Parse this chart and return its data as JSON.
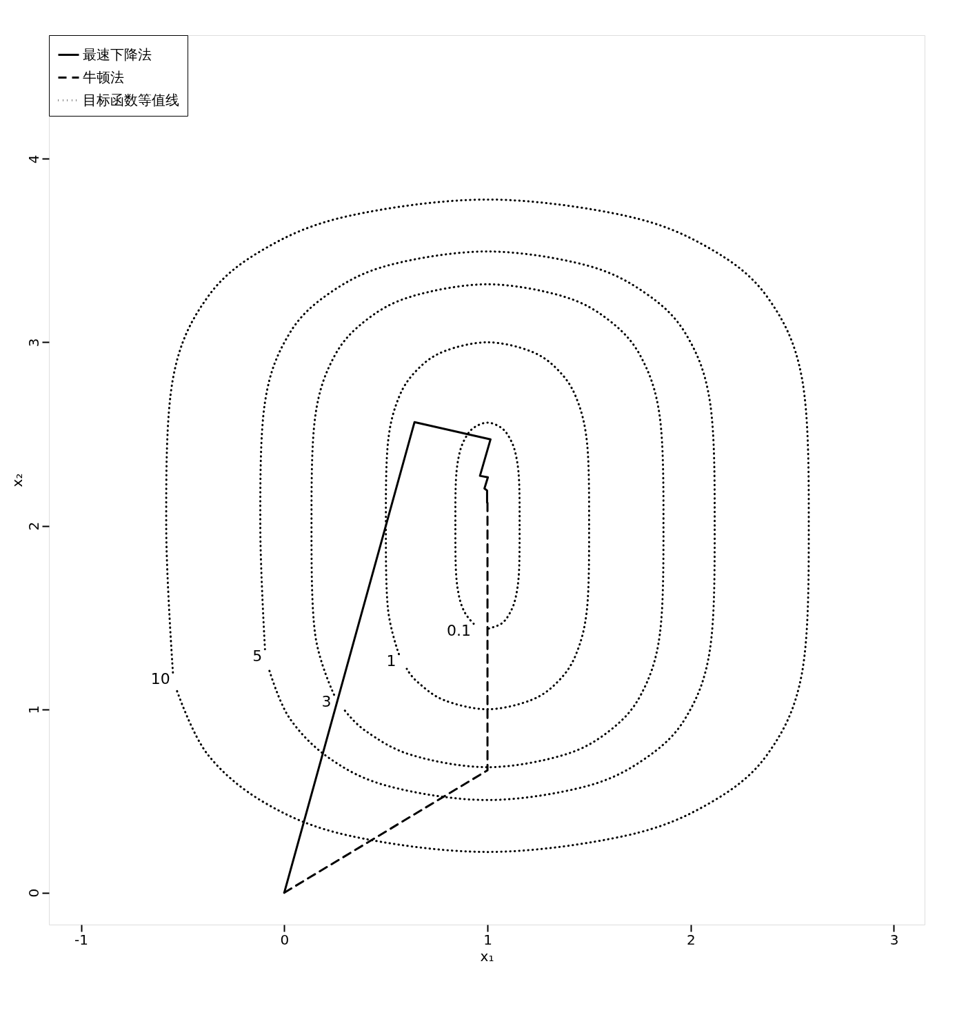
{
  "chart_data": {
    "type": "line",
    "xlabel": "x₁",
    "ylabel": "x₂",
    "xlim": [
      -1.158,
      3.151
    ],
    "ylim": [
      -0.174,
      4.674
    ],
    "xticks": [
      -1,
      0,
      1,
      2,
      3
    ],
    "yticks": [
      0,
      1,
      2,
      3,
      4
    ],
    "grid": false,
    "legend": "top left",
    "marker": "none",
    "series": [
      {
        "name": "最速下降法",
        "color": "#000000",
        "line_style": "solid",
        "x": [
          0,
          0.641,
          1.015,
          0.963,
          1.002,
          0.985,
          0.998,
          0.998
        ],
        "values": [
          0,
          2.565,
          2.471,
          2.272,
          2.264,
          2.203,
          2.192,
          2.127
        ]
      },
      {
        "name": "牛顿法",
        "color": "#000000",
        "line_style": "dashed",
        "x": [
          0,
          1,
          1
        ],
        "values": [
          0,
          0.667,
          2.13
        ]
      },
      {
        "name": "目标函数等值线",
        "color": "#000000",
        "line_style": "dotted",
        "x": [
          0.932,
          0.891,
          0.862,
          0.845,
          0.842,
          0.845,
          0.862,
          0.891,
          0.932,
          1,
          1.068,
          1.109,
          1.138,
          1.155,
          1.158,
          1.155,
          1.138,
          1.109,
          1.068,
          1
        ],
        "values": [
          1.466,
          1.522,
          1.606,
          1.747,
          2,
          2.253,
          2.394,
          2.478,
          2.534,
          2.562,
          2.534,
          2.478,
          2.394,
          2.253,
          2,
          1.747,
          1.606,
          1.522,
          1.466,
          1.438
        ]
      },
      {
        "color": "#000000",
        "line_style": "dotted",
        "x": [
          0.564,
          0.51,
          0.5,
          0.51,
          0.564,
          0.654,
          0.785,
          1,
          1.215,
          1.346,
          1.436,
          1.49,
          1.5,
          1.49,
          1.436,
          1.346,
          1.215,
          1,
          0.785,
          0.654,
          0.603
        ],
        "values": [
          1.3,
          1.55,
          2,
          2.45,
          2.7,
          2.85,
          2.95,
          3,
          2.95,
          2.85,
          2.7,
          2.45,
          2,
          1.55,
          1.3,
          1.15,
          1.05,
          1,
          1.05,
          1.15,
          1.22
        ]
      },
      {
        "color": "#000000",
        "line_style": "dotted",
        "x": [
          0.245,
          0.152,
          0.134,
          0.152,
          0.245,
          0.401,
          0.627,
          1,
          1.373,
          1.599,
          1.755,
          1.848,
          1.866,
          1.848,
          1.755,
          1.599,
          1.373,
          1,
          0.627,
          0.401,
          0.293
        ],
        "values": [
          1.079,
          1.408,
          2,
          2.592,
          2.921,
          3.119,
          3.25,
          3.316,
          3.25,
          3.119,
          2.921,
          2.592,
          2,
          1.408,
          1.079,
          0.881,
          0.75,
          0.684,
          0.75,
          0.881,
          1.0
        ]
      },
      {
        "color": "#000000",
        "line_style": "dotted",
        "x": [
          -0.095,
          -0.118,
          -0.095,
          0.025,
          0.227,
          0.518,
          1,
          1.482,
          1.773,
          1.975,
          2.095,
          2.118,
          2.095,
          1.975,
          1.773,
          1.482,
          1,
          0.518,
          0.227,
          0.025,
          -0.076
        ],
        "values": [
          1.327,
          2,
          2.673,
          3.047,
          3.271,
          3.421,
          3.495,
          3.421,
          3.271,
          3.047,
          2.673,
          2,
          1.327,
          0.953,
          0.729,
          0.579,
          0.505,
          0.579,
          0.729,
          0.953,
          1.22
        ]
      },
      {
        "color": "#000000",
        "line_style": "dotted",
        "x": [
          -0.548,
          -0.581,
          -0.548,
          -0.378,
          -0.093,
          0.319,
          1,
          1.681,
          2.093,
          2.378,
          2.548,
          2.581,
          2.548,
          2.378,
          2.093,
          1.681,
          1,
          0.319,
          -0.093,
          -0.378,
          -0.528
        ],
        "values": [
          1.2,
          2,
          2.8,
          3.245,
          3.512,
          3.689,
          3.778,
          3.689,
          3.512,
          3.245,
          2.8,
          2,
          1.2,
          0.755,
          0.488,
          0.311,
          0.222,
          0.311,
          0.488,
          0.755,
          1.1
        ]
      }
    ],
    "annotations": [
      {
        "text": "0.1",
        "x": 0.932,
        "y": 1.466
      },
      {
        "text": "1",
        "x": 0.564,
        "y": 1.3
      },
      {
        "text": "3",
        "x": 0.245,
        "y": 1.079
      },
      {
        "text": "5",
        "x": -0.095,
        "y": 1.327
      },
      {
        "text": "10",
        "x": -0.548,
        "y": 1.2
      }
    ]
  }
}
